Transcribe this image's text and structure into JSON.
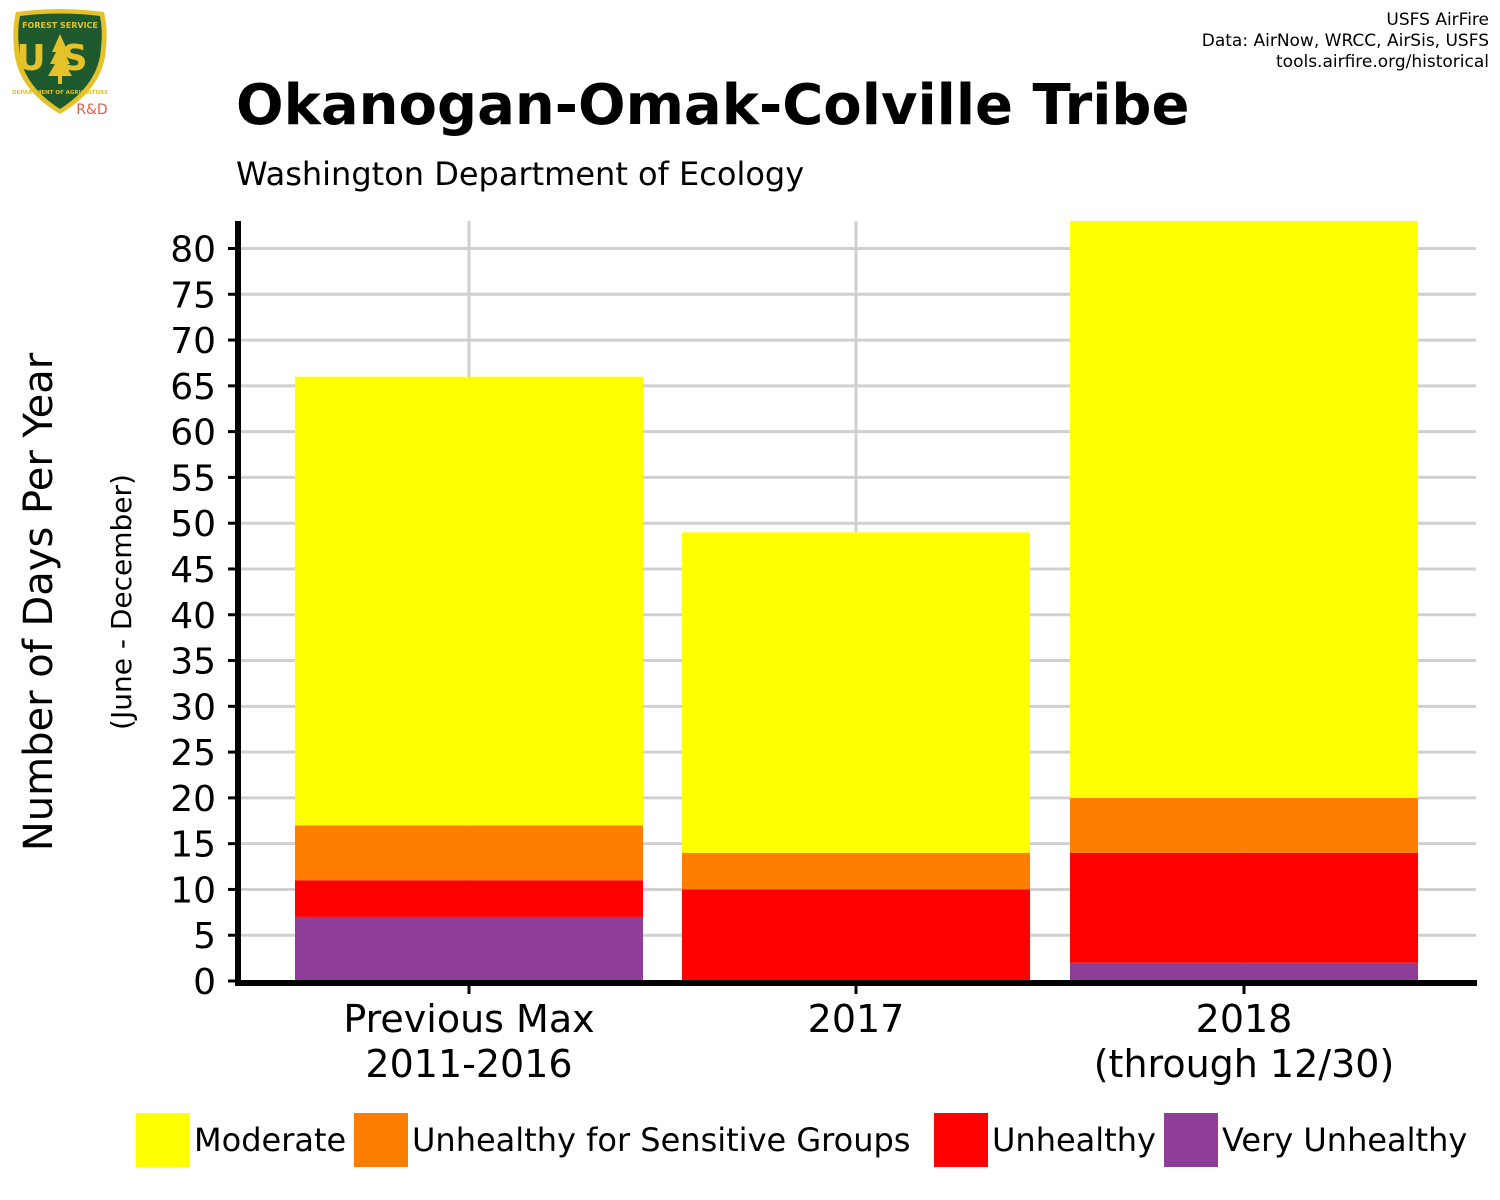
{
  "header": {
    "title": "Okanogan-Omak-Colville Tribe",
    "subtitle": "Washington Department of Ecology",
    "credits": [
      "USFS AirFire",
      "Data: AirNow, WRCC, AirSis, USFS",
      "tools.airfire.org/historical"
    ]
  },
  "logo": {
    "top_text": "FOREST SERVICE",
    "letters": "US",
    "bottom_text": "DEPARTMENT OF AGRICULTURE",
    "tag": "R&D",
    "colors": {
      "shield": "#1f5a2e",
      "rim": "#e5c22a",
      "tag": "#e35d4a"
    }
  },
  "chart_data": {
    "type": "bar",
    "stacked": true,
    "categories": [
      [
        "Previous Max",
        "2011-2016"
      ],
      [
        "2017"
      ],
      [
        "2018",
        "(through 12/30)"
      ]
    ],
    "ylabel": "Number of Days Per Year",
    "ylabel_sub": "(June - December)",
    "yticks": [
      0,
      5,
      10,
      15,
      20,
      25,
      30,
      35,
      40,
      45,
      50,
      55,
      60,
      65,
      70,
      75,
      80
    ],
    "ylim": [
      0,
      83
    ],
    "grid": true,
    "legend_position": "bottom",
    "series": [
      {
        "name": "Very Unhealthy",
        "color": "#8e3e97",
        "values": [
          7,
          0,
          2
        ]
      },
      {
        "name": "Unhealthy",
        "color": "#ff0000",
        "values": [
          4,
          10,
          12
        ]
      },
      {
        "name": "Unhealthy for Sensitive Groups",
        "color": "#ff7e00",
        "values": [
          6,
          4,
          6
        ]
      },
      {
        "name": "Moderate",
        "color": "#ffff00",
        "values": [
          49,
          35,
          63
        ]
      }
    ],
    "legend_order": [
      "Moderate",
      "Unhealthy for Sensitive Groups",
      "Unhealthy",
      "Very Unhealthy"
    ]
  }
}
